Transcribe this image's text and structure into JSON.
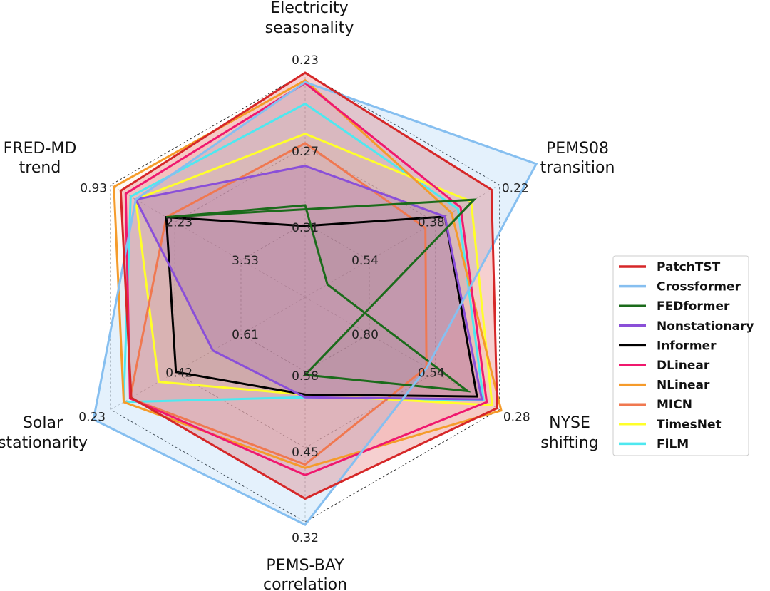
{
  "chart_data": {
    "type": "radar",
    "axes": [
      {
        "line1": "Electricity",
        "line2": "seasonality",
        "ticks": [
          "0.23",
          "0.27",
          "0.31"
        ]
      },
      {
        "line1": "PEMS08",
        "line2": "transition",
        "ticks": [
          "0.22",
          "0.38",
          "0.54"
        ]
      },
      {
        "line1": "NYSE",
        "line2": "shifting",
        "ticks": [
          "0.28",
          "0.54",
          "0.80"
        ]
      },
      {
        "line1": "PEMS-BAY",
        "line2": "correlation",
        "ticks": [
          "0.32",
          "0.45",
          "0.58"
        ]
      },
      {
        "line1": "Solar",
        "line2": "stationarity",
        "ticks": [
          "0.23",
          "0.42",
          "0.61"
        ]
      },
      {
        "line1": "FRED-MD",
        "line2": "trend",
        "ticks": [
          "0.93",
          "2.23",
          "3.53"
        ]
      }
    ],
    "grid": "dashed hexagonal rings",
    "legend_position": "right",
    "series": [
      {
        "name": "PatchTST",
        "color": "#d62728",
        "fill": true,
        "values": [
          0.23,
          0.24,
          0.29,
          0.36,
          0.29,
          1.13
        ]
      },
      {
        "name": "Crossformer",
        "color": "#86bff0",
        "fill": true,
        "values": [
          0.235,
          0.13,
          0.57,
          0.315,
          0.18,
          1.43
        ]
      },
      {
        "name": "FEDformer",
        "color": "#1b6b1b",
        "fill": false,
        "values": [
          0.3005,
          0.643,
          0.408,
          0.574,
          1.29,
          2.04
        ]
      },
      {
        "name": "Nonstationary",
        "color": "#8a4fd8",
        "fill": true,
        "values": [
          0.2795,
          0.3542,
          0.351,
          0.5354,
          0.5282,
          1.43
        ]
      },
      {
        "name": "Informer",
        "color": "#000000",
        "fill": false,
        "values": [
          0.3115,
          0.3542,
          0.3705,
          0.54,
          0.4203,
          2.04
        ]
      },
      {
        "name": "DLinear",
        "color": "#f0186e",
        "fill": false,
        "values": [
          0.2355,
          0.3158,
          0.3315,
          0.4008,
          0.2865,
          1.23
        ]
      },
      {
        "name": "NLinear",
        "color": "#f59b2a",
        "fill": false,
        "values": [
          0.234,
          0.3382,
          0.2735,
          0.4133,
          0.2681,
          0.995
        ]
      },
      {
        "name": "MICN",
        "color": "#f07850",
        "fill": false,
        "values": [
          0.2675,
          0.4022,
          0.572,
          0.4191,
          0.2865,
          2.04
        ]
      },
      {
        "name": "TimesNet",
        "color": "#ffff2a",
        "fill": false,
        "values": [
          0.2625,
          0.29,
          0.31,
          0.54,
          0.37,
          1.43
        ]
      },
      {
        "name": "FiLM",
        "color": "#4ee8f0",
        "fill": false,
        "values": [
          0.2465,
          0.3222,
          0.3445,
          0.5354,
          0.2681,
          1.33
        ]
      }
    ]
  }
}
